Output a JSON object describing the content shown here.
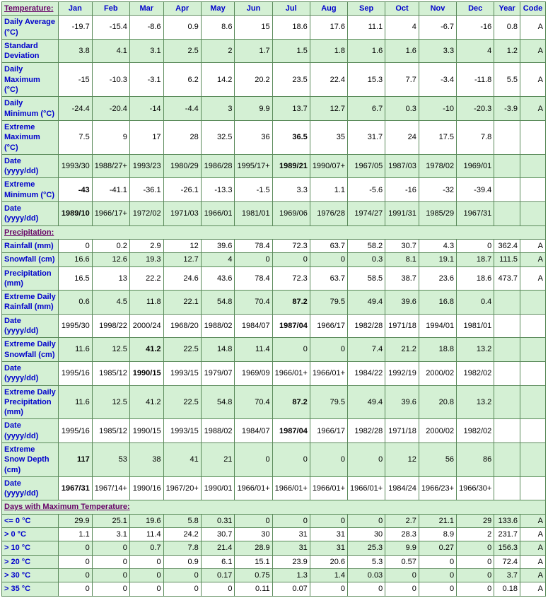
{
  "headers": [
    "Jan",
    "Feb",
    "Mar",
    "Apr",
    "May",
    "Jun",
    "Jul",
    "Aug",
    "Sep",
    "Oct",
    "Nov",
    "Dec",
    "Year",
    "Code"
  ],
  "sections": [
    {
      "title": "Temperature:",
      "rows": [
        {
          "label": "Daily Average (°C)",
          "cls": "odd",
          "cells": [
            "-19.7",
            "-15.4",
            "-8.6",
            "0.9",
            "8.6",
            "15",
            "18.6",
            "17.6",
            "11.1",
            "4",
            "-6.7",
            "-16",
            "0.8",
            "A"
          ]
        },
        {
          "label": "Standard Deviation",
          "cls": "even",
          "cells": [
            "3.8",
            "4.1",
            "3.1",
            "2.5",
            "2",
            "1.7",
            "1.5",
            "1.8",
            "1.6",
            "1.6",
            "3.3",
            "4",
            "1.2",
            "A"
          ]
        },
        {
          "label": "Daily Maximum (°C)",
          "cls": "odd",
          "cells": [
            "-15",
            "-10.3",
            "-3.1",
            "6.2",
            "14.2",
            "20.2",
            "23.5",
            "22.4",
            "15.3",
            "7.7",
            "-3.4",
            "-11.8",
            "5.5",
            "A"
          ]
        },
        {
          "label": "Daily Minimum (°C)",
          "cls": "even",
          "cells": [
            "-24.4",
            "-20.4",
            "-14",
            "-4.4",
            "3",
            "9.9",
            "13.7",
            "12.7",
            "6.7",
            "0.3",
            "-10",
            "-20.3",
            "-3.9",
            "A"
          ]
        },
        {
          "label": "Extreme Maximum (°C)",
          "cls": "odd",
          "cells": [
            "7.5",
            "9",
            "17",
            "28",
            "32.5",
            "36",
            "36.5",
            "35",
            "31.7",
            "24",
            "17.5",
            "7.8",
            "",
            ""
          ],
          "bold": [
            6
          ]
        },
        {
          "label": "Date (yyyy/dd)",
          "cls": "even",
          "cells": [
            "1993/30",
            "1988/27+",
            "1993/23",
            "1980/29",
            "1986/28",
            "1995/17+",
            "1989/21",
            "1990/07+",
            "1967/05",
            "1987/03",
            "1978/02",
            "1969/01",
            "",
            ""
          ],
          "bold": [
            6
          ]
        },
        {
          "label": "Extreme Minimum (°C)",
          "cls": "odd",
          "cells": [
            "-43",
            "-41.1",
            "-36.1",
            "-26.1",
            "-13.3",
            "-1.5",
            "3.3",
            "1.1",
            "-5.6",
            "-16",
            "-32",
            "-39.4",
            "",
            ""
          ],
          "bold": [
            0
          ]
        },
        {
          "label": "Date (yyyy/dd)",
          "cls": "even",
          "cells": [
            "1989/10",
            "1966/17+",
            "1972/02",
            "1971/03",
            "1966/01",
            "1981/01",
            "1969/06",
            "1976/28",
            "1974/27",
            "1991/31",
            "1985/29",
            "1967/31",
            "",
            ""
          ],
          "bold": [
            0
          ]
        }
      ]
    },
    {
      "title": "Precipitation:",
      "rows": [
        {
          "label": "Rainfall (mm)",
          "cls": "odd",
          "cells": [
            "0",
            "0.2",
            "2.9",
            "12",
            "39.6",
            "78.4",
            "72.3",
            "63.7",
            "58.2",
            "30.7",
            "4.3",
            "0",
            "362.4",
            "A"
          ]
        },
        {
          "label": "Snowfall (cm)",
          "cls": "even",
          "cells": [
            "16.6",
            "12.6",
            "19.3",
            "12.7",
            "4",
            "0",
            "0",
            "0",
            "0.3",
            "8.1",
            "19.1",
            "18.7",
            "111.5",
            "A"
          ]
        },
        {
          "label": "Precipitation (mm)",
          "cls": "odd",
          "cells": [
            "16.5",
            "13",
            "22.2",
            "24.6",
            "43.6",
            "78.4",
            "72.3",
            "63.7",
            "58.5",
            "38.7",
            "23.6",
            "18.6",
            "473.7",
            "A"
          ]
        },
        {
          "label": "Extreme Daily Rainfall (mm)",
          "cls": "even",
          "cells": [
            "0.6",
            "4.5",
            "11.8",
            "22.1",
            "54.8",
            "70.4",
            "87.2",
            "79.5",
            "49.4",
            "39.6",
            "16.8",
            "0.4",
            "",
            ""
          ],
          "bold": [
            6
          ]
        },
        {
          "label": "Date (yyyy/dd)",
          "cls": "odd",
          "cells": [
            "1995/30",
            "1998/22",
            "2000/24",
            "1968/20",
            "1988/02",
            "1984/07",
            "1987/04",
            "1966/17",
            "1982/28",
            "1971/18",
            "1994/01",
            "1981/01",
            "",
            ""
          ],
          "bold": [
            6
          ]
        },
        {
          "label": "Extreme Daily Snowfall (cm)",
          "cls": "even",
          "cells": [
            "11.6",
            "12.5",
            "41.2",
            "22.5",
            "14.8",
            "11.4",
            "0",
            "0",
            "7.4",
            "21.2",
            "18.8",
            "13.2",
            "",
            ""
          ],
          "bold": [
            2
          ]
        },
        {
          "label": "Date (yyyy/dd)",
          "cls": "odd",
          "cells": [
            "1995/16",
            "1985/12",
            "1990/15",
            "1993/15",
            "1979/07",
            "1969/09",
            "1966/01+",
            "1966/01+",
            "1984/22",
            "1992/19",
            "2000/02",
            "1982/02",
            "",
            ""
          ],
          "bold": [
            2
          ]
        },
        {
          "label": "Extreme Daily Precipitation (mm)",
          "cls": "even",
          "cells": [
            "11.6",
            "12.5",
            "41.2",
            "22.5",
            "54.8",
            "70.4",
            "87.2",
            "79.5",
            "49.4",
            "39.6",
            "20.8",
            "13.2",
            "",
            ""
          ],
          "bold": [
            6
          ]
        },
        {
          "label": "Date (yyyy/dd)",
          "cls": "odd",
          "cells": [
            "1995/16",
            "1985/12",
            "1990/15",
            "1993/15",
            "1988/02",
            "1984/07",
            "1987/04",
            "1966/17",
            "1982/28",
            "1971/18",
            "2000/02",
            "1982/02",
            "",
            ""
          ],
          "bold": [
            6
          ]
        },
        {
          "label": "Extreme Snow Depth (cm)",
          "cls": "even",
          "cells": [
            "117",
            "53",
            "38",
            "41",
            "21",
            "0",
            "0",
            "0",
            "0",
            "12",
            "56",
            "86",
            "",
            ""
          ],
          "bold": [
            0
          ]
        },
        {
          "label": "Date (yyyy/dd)",
          "cls": "odd",
          "cells": [
            "1967/31",
            "1967/14+",
            "1990/16",
            "1967/20+",
            "1990/01",
            "1966/01+",
            "1966/01+",
            "1966/01+",
            "1966/01+",
            "1984/24",
            "1966/23+",
            "1966/30+",
            "",
            ""
          ],
          "bold": [
            0
          ]
        }
      ]
    },
    {
      "title": "Days with Maximum Temperature:",
      "rows": [
        {
          "label": "<= 0 °C",
          "cls": "even",
          "cells": [
            "29.9",
            "25.1",
            "19.6",
            "5.8",
            "0.31",
            "0",
            "0",
            "0",
            "0",
            "2.7",
            "21.1",
            "29",
            "133.6",
            "A"
          ]
        },
        {
          "label": "> 0 °C",
          "cls": "odd",
          "cells": [
            "1.1",
            "3.1",
            "11.4",
            "24.2",
            "30.7",
            "30",
            "31",
            "31",
            "30",
            "28.3",
            "8.9",
            "2",
            "231.7",
            "A"
          ]
        },
        {
          "label": "> 10 °C",
          "cls": "even",
          "cells": [
            "0",
            "0",
            "0.7",
            "7.8",
            "21.4",
            "28.9",
            "31",
            "31",
            "25.3",
            "9.9",
            "0.27",
            "0",
            "156.3",
            "A"
          ]
        },
        {
          "label": "> 20 °C",
          "cls": "odd",
          "cells": [
            "0",
            "0",
            "0",
            "0.9",
            "6.1",
            "15.1",
            "23.9",
            "20.6",
            "5.3",
            "0.57",
            "0",
            "0",
            "72.4",
            "A"
          ]
        },
        {
          "label": "> 30 °C",
          "cls": "even",
          "cells": [
            "0",
            "0",
            "0",
            "0",
            "0.17",
            "0.75",
            "1.3",
            "1.4",
            "0.03",
            "0",
            "0",
            "0",
            "3.7",
            "A"
          ]
        },
        {
          "label": "> 35 °C",
          "cls": "odd",
          "cells": [
            "0",
            "0",
            "0",
            "0",
            "0",
            "0.11",
            "0.07",
            "0",
            "0",
            "0",
            "0",
            "0",
            "0.18",
            "A"
          ]
        }
      ]
    }
  ]
}
